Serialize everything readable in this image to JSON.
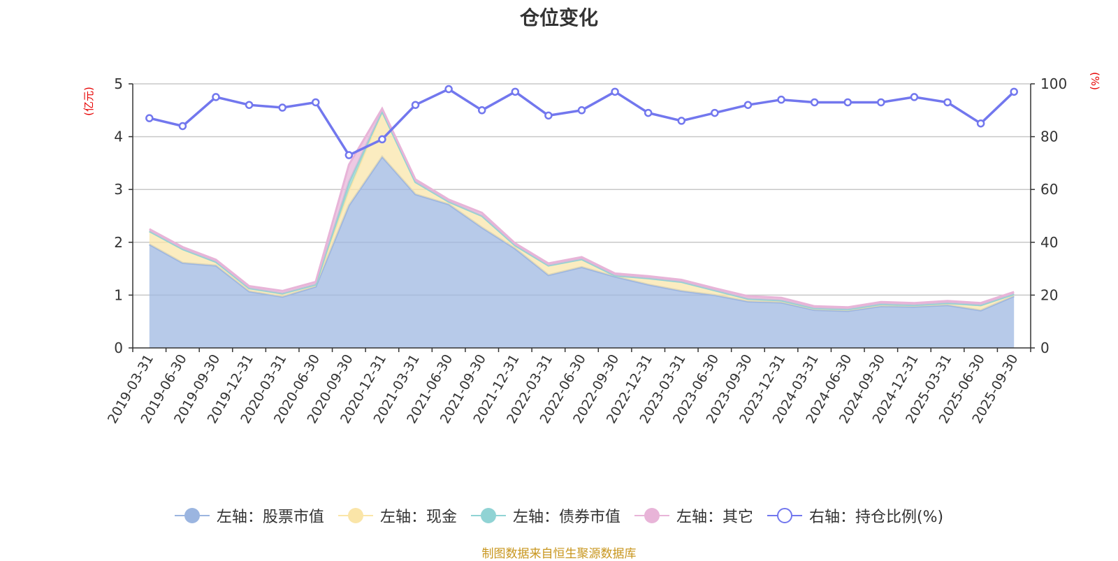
{
  "chart_data": {
    "type": "area",
    "title": "仓位变化",
    "left_axis_unit": "(亿元)",
    "right_axis_unit": "(%)",
    "left_ylim": [
      0,
      5
    ],
    "left_ticks": [
      "0",
      "1",
      "2",
      "3",
      "4",
      "5"
    ],
    "right_ylim": [
      0,
      100
    ],
    "right_ticks": [
      "0",
      "20",
      "40",
      "60",
      "80",
      "100"
    ],
    "categories": [
      "2019-03-31",
      "2019-06-30",
      "2019-09-30",
      "2019-12-31",
      "2020-03-31",
      "2020-06-30",
      "2020-09-30",
      "2020-12-31",
      "2021-03-31",
      "2021-06-30",
      "2021-09-30",
      "2021-12-31",
      "2022-03-31",
      "2022-06-30",
      "2022-09-30",
      "2022-12-31",
      "2023-03-31",
      "2023-06-30",
      "2023-09-30",
      "2023-12-31",
      "2024-03-31",
      "2024-06-30",
      "2024-09-30",
      "2024-12-31",
      "2025-03-31",
      "2025-06-30",
      "2025-09-30"
    ],
    "stacked_series": [
      {
        "name": "左轴：股票市值",
        "color": "#9bb5e0",
        "values": [
          1.96,
          1.61,
          1.56,
          1.07,
          0.97,
          1.16,
          2.7,
          3.62,
          2.91,
          2.72,
          2.28,
          1.88,
          1.38,
          1.53,
          1.35,
          1.2,
          1.08,
          1.0,
          0.88,
          0.86,
          0.72,
          0.7,
          0.79,
          0.78,
          0.81,
          0.71,
          0.98
        ]
      },
      {
        "name": "左轴：现金",
        "color": "#fae5a8",
        "values": [
          0.25,
          0.26,
          0.07,
          0.06,
          0.06,
          0.04,
          0.29,
          0.85,
          0.23,
          0.05,
          0.22,
          0.06,
          0.18,
          0.15,
          0.02,
          0.12,
          0.17,
          0.09,
          0.05,
          0.04,
          0.03,
          0.03,
          0.04,
          0.03,
          0.04,
          0.1,
          0.04
        ]
      },
      {
        "name": "左轴：债券市值",
        "color": "#90d3d4",
        "values": [
          0,
          0,
          0,
          0,
          0,
          0,
          0.15,
          0.01,
          0,
          0,
          0,
          0,
          0,
          0,
          0,
          0,
          0,
          0,
          0,
          0,
          0,
          0,
          0,
          0,
          0,
          0,
          0
        ]
      },
      {
        "name": "左轴：其它",
        "color": "#e8b4d8",
        "values": [
          0.04,
          0.04,
          0.04,
          0.04,
          0.05,
          0.05,
          0.33,
          0.05,
          0.05,
          0.04,
          0.06,
          0.04,
          0.04,
          0.04,
          0.04,
          0.04,
          0.04,
          0.04,
          0.05,
          0.05,
          0.04,
          0.04,
          0.04,
          0.04,
          0.04,
          0.04,
          0.04
        ]
      }
    ],
    "line_series": {
      "name": "右轴：持仓比例(%)",
      "color": "#7277ee",
      "values": [
        87,
        84,
        95,
        92,
        91,
        93,
        73,
        79,
        92,
        98,
        90,
        97,
        88,
        90,
        97,
        89,
        86,
        89,
        92,
        94,
        93,
        93,
        93,
        95,
        93,
        85,
        97
      ]
    },
    "legend_position": "bottom"
  },
  "footer": "制图数据来自恒生聚源数据库"
}
